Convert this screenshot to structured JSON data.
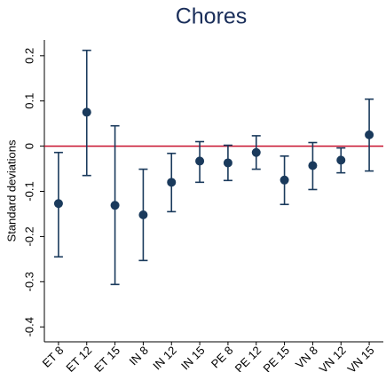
{
  "chart_data": {
    "type": "errorbar",
    "title": "Chores",
    "y_label": "Standard deviations",
    "categories": [
      "ET 8",
      "ET 12",
      "ET 15",
      "IN 8",
      "IN 12",
      "IN 15",
      "PE 8",
      "PE 12",
      "PE 15",
      "VN 8",
      "VN 12",
      "VN 15"
    ],
    "color": "#1a3a5c",
    "values": [
      -0.127,
      0.075,
      -0.131,
      -0.152,
      -0.08,
      -0.033,
      -0.037,
      -0.014,
      -0.075,
      -0.043,
      -0.031,
      0.025
    ],
    "lower": [
      -0.245,
      -0.065,
      -0.306,
      -0.253,
      -0.145,
      -0.08,
      -0.076,
      -0.051,
      -0.129,
      -0.096,
      -0.059,
      -0.055
    ],
    "upper": [
      -0.014,
      0.212,
      0.045,
      -0.051,
      -0.016,
      0.01,
      0.002,
      0.023,
      -0.022,
      0.008,
      -0.004,
      0.104
    ],
    "ylim": [
      -0.433,
      0.235
    ],
    "yticks": [
      -0.4,
      -0.3,
      -0.2,
      -0.1,
      0,
      0.1,
      0.2
    ],
    "refline": 0,
    "refline_color": "#c8102e"
  }
}
